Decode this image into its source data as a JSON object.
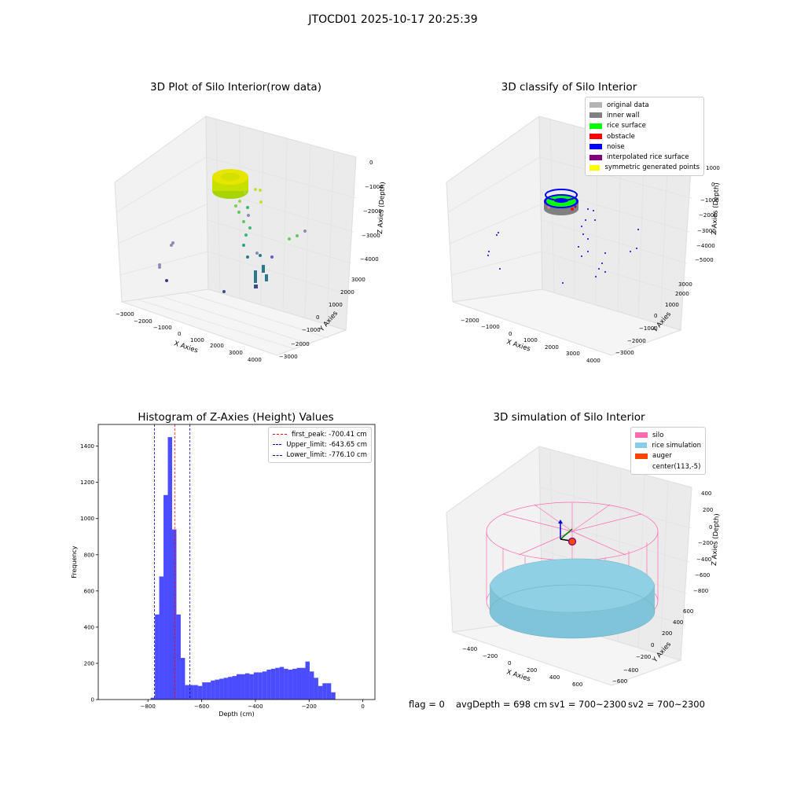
{
  "suptitle": "JTOCD01 2025-10-17 20:25:39",
  "panels": {
    "raw": {
      "title": "3D Plot of Silo Interior(row data)",
      "xlabel": "X Axies",
      "ylabel": "Y Axies",
      "zlabel": "Z Axies (Depth)",
      "xticks": [
        "−3000",
        "−2000",
        "−1000",
        "0",
        "1000",
        "2000",
        "3000",
        "4000"
      ],
      "yticks": [
        "−3000",
        "−2000",
        "−1000",
        "0",
        "1000",
        "2000",
        "3000"
      ],
      "zticks": [
        "−4000",
        "−3000",
        "−2000",
        "−1000",
        "0"
      ]
    },
    "classify": {
      "title": "3D classify of Silo Interior",
      "xlabel": "X Axies",
      "ylabel": "Y Axies",
      "zlabel": "Z Axies (Depth)",
      "xticks": [
        "−2000",
        "−1000",
        "0",
        "1000",
        "2000",
        "3000",
        "4000"
      ],
      "yticks": [
        "−3000",
        "−2000",
        "−1000",
        "0",
        "1000",
        "2000",
        "3000"
      ],
      "zticks": [
        "−5000",
        "−4000",
        "−3000",
        "−2000",
        "−1000",
        "0",
        "1000"
      ],
      "legend": [
        {
          "label": "original data",
          "color": "#b3b3b3"
        },
        {
          "label": "inner wall",
          "color": "#808080"
        },
        {
          "label": "rice surface",
          "color": "#00ff00"
        },
        {
          "label": "obstacle",
          "color": "#ff0000"
        },
        {
          "label": "noise",
          "color": "#0000ff"
        },
        {
          "label": "interpolated rice surface",
          "color": "#800080"
        },
        {
          "label": "symmetric generated points",
          "color": "#ffff00"
        }
      ]
    },
    "simulation": {
      "title": "3D simulation of Silo Interior",
      "xlabel": "X Axies",
      "ylabel": "Y Axies",
      "zlabel": "Z Axies (Depth)",
      "xticks": [
        "−400",
        "−200",
        "0",
        "200",
        "400",
        "600"
      ],
      "yticks": [
        "−600",
        "−400",
        "−200",
        "0",
        "200",
        "400",
        "600"
      ],
      "zticks": [
        "−800",
        "−600",
        "−400",
        "−200",
        "0",
        "200",
        "400"
      ],
      "legend": [
        {
          "label": "silo",
          "color": "#ff69b4"
        },
        {
          "label": "rice simulation",
          "color": "#87ceeb"
        },
        {
          "label": "auger",
          "color": "#ff4500"
        },
        {
          "label": "center(113,-5)",
          "color": "#ffffff"
        }
      ]
    }
  },
  "chart_data": {
    "type": "bar",
    "title": "Histogram of Z-Axies (Height) Values",
    "xlabel": "Depth (cm)",
    "ylabel": "Frequency",
    "xlim": [
      -985,
      45
    ],
    "ylim": [
      0,
      1520
    ],
    "xticks": [
      -800,
      -600,
      -400,
      -200,
      0
    ],
    "yticks": [
      0,
      200,
      400,
      600,
      800,
      1000,
      1200,
      1400
    ],
    "bin_width": 16,
    "bin_starts": [
      -790,
      -774,
      -758,
      -742,
      -726,
      -710,
      -694,
      -678,
      -662,
      -646,
      -630,
      -614,
      -598,
      -582,
      -566,
      -550,
      -534,
      -518,
      -502,
      -486,
      -470,
      -454,
      -438,
      -422,
      -406,
      -390,
      -374,
      -358,
      -342,
      -326,
      -310,
      -294,
      -278,
      -262,
      -246,
      -230,
      -214,
      -198,
      -182,
      -166,
      -150,
      -134,
      -118,
      -102,
      -86,
      -70,
      -54,
      -38,
      -22,
      -6
    ],
    "values": [
      10,
      470,
      680,
      1130,
      1450,
      940,
      470,
      230,
      80,
      80,
      80,
      75,
      95,
      95,
      105,
      110,
      115,
      120,
      125,
      130,
      140,
      140,
      145,
      140,
      150,
      150,
      155,
      165,
      170,
      175,
      180,
      170,
      165,
      170,
      175,
      175,
      210,
      155,
      120,
      75,
      90,
      90,
      40,
      0,
      0,
      0,
      0,
      0,
      0,
      0
    ],
    "color": "#0000ff",
    "vlines": [
      {
        "label": "first_peak: -700.41 cm",
        "x": -700.41,
        "color": "#ff0000"
      },
      {
        "label": "Upper_limit: -643.65 cm",
        "x": -643.65,
        "color": "#0000aa"
      },
      {
        "label": "Lower_limit: -776.10 cm",
        "x": -776.1,
        "color": "#0000aa"
      }
    ]
  },
  "footer": {
    "flag": "flag = 0",
    "avg": "avgDepth = 698 cm",
    "sv1": "sv1 = 700~2300",
    "sv2": "sv2 = 700~2300"
  }
}
